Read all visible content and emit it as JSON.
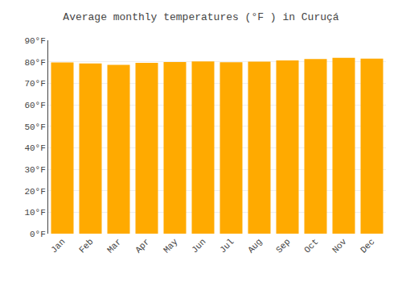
{
  "chart_data": {
    "type": "bar",
    "title": "Average monthly temperatures (°F ) in Curuçá",
    "categories": [
      "Jan",
      "Feb",
      "Mar",
      "Apr",
      "May",
      "Jun",
      "Jul",
      "Aug",
      "Sep",
      "Oct",
      "Nov",
      "Dec"
    ],
    "values": [
      79.7,
      79.2,
      78.6,
      79.5,
      79.9,
      80.2,
      79.8,
      80.1,
      80.6,
      81.3,
      81.8,
      81.5
    ],
    "color": "#FFAA00",
    "ylim": [
      0,
      90
    ],
    "yticks": [
      {
        "value": 0,
        "label": "0°F"
      },
      {
        "value": 10,
        "label": "10°F"
      },
      {
        "value": 20,
        "label": "20°F"
      },
      {
        "value": 30,
        "label": "30°F"
      },
      {
        "value": 40,
        "label": "40°F"
      },
      {
        "value": 50,
        "label": "50°F"
      },
      {
        "value": 60,
        "label": "60°F"
      },
      {
        "value": 70,
        "label": "70°F"
      },
      {
        "value": 80,
        "label": "80°F"
      },
      {
        "value": 90,
        "label": "90°F"
      }
    ],
    "grid": true
  }
}
